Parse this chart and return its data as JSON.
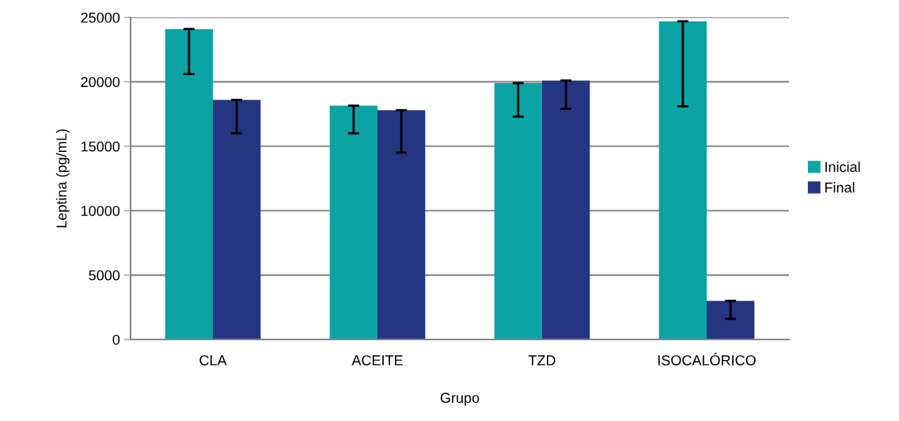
{
  "chart_data": {
    "type": "bar",
    "xlabel": "Grupo",
    "ylabel": "Leptina (pg/mL)",
    "categories": [
      "CLA",
      "ACEITE",
      "TZD",
      "ISOCALÓRICO"
    ],
    "series": [
      {
        "name": "Inicial",
        "color": "#0ba3a3",
        "values": [
          24100,
          18150,
          19900,
          24700
        ],
        "errors": [
          [
            20600,
            24100
          ],
          [
            16000,
            18150
          ],
          [
            17300,
            19900
          ],
          [
            18100,
            24700
          ]
        ]
      },
      {
        "name": "Final",
        "color": "#243582",
        "values": [
          18600,
          17800,
          20100,
          3000
        ],
        "errors": [
          [
            16000,
            18600
          ],
          [
            14500,
            17800
          ],
          [
            17900,
            20100
          ],
          [
            1600,
            3000
          ]
        ]
      }
    ],
    "ylim": [
      0,
      25000
    ],
    "yticks": [
      0,
      5000,
      10000,
      15000,
      20000,
      25000
    ],
    "grid": "y",
    "legend": "right"
  }
}
